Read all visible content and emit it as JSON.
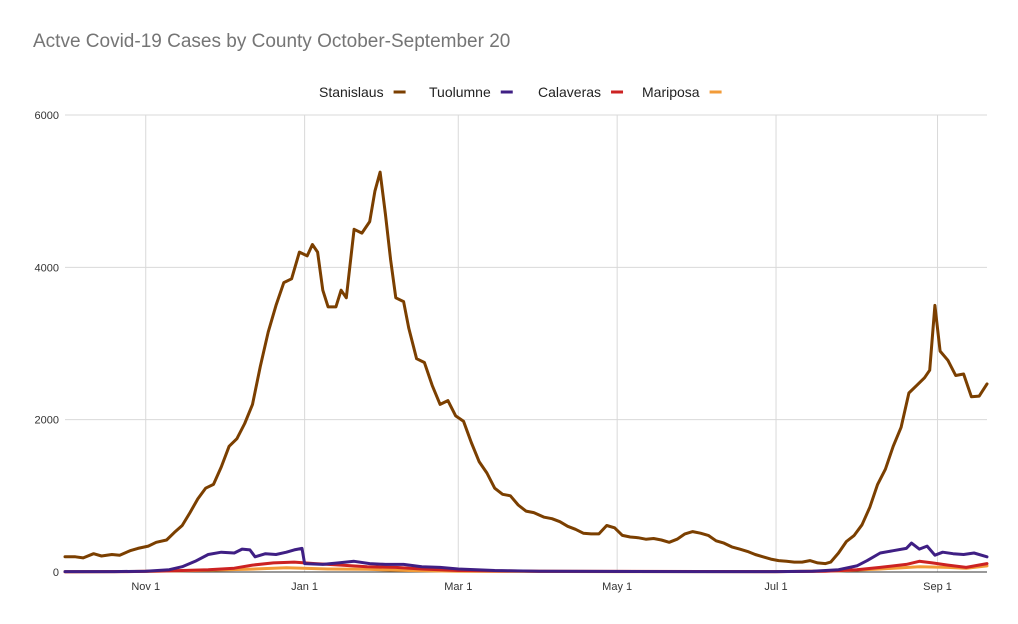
{
  "chart_data": {
    "type": "line",
    "title": "Actve Covid-19 Cases by County October-September 20",
    "xlabel": "",
    "ylabel": "",
    "ylim": [
      0,
      6000
    ],
    "y_ticks": [
      0,
      2000,
      4000,
      6000
    ],
    "x_range": [
      "2020-10-01",
      "2021-09-20"
    ],
    "x_ticks": [
      {
        "date": "2020-11-01",
        "label": "Nov 1"
      },
      {
        "date": "2021-01-01",
        "label": "Jan 1"
      },
      {
        "date": "2021-03-01",
        "label": "Mar 1"
      },
      {
        "date": "2021-05-01",
        "label": "May 1"
      },
      {
        "date": "2021-07-01",
        "label": "Jul 1"
      },
      {
        "date": "2021-09-01",
        "label": "Sep 1"
      }
    ],
    "grid": true,
    "legend_position": "top",
    "series": [
      {
        "name": "Stanislaus",
        "color": "#7b3f00",
        "points": [
          [
            "2020-10-01",
            200
          ],
          [
            "2020-10-05",
            200
          ],
          [
            "2020-10-08",
            185
          ],
          [
            "2020-10-12",
            240
          ],
          [
            "2020-10-15",
            210
          ],
          [
            "2020-10-19",
            230
          ],
          [
            "2020-10-22",
            220
          ],
          [
            "2020-10-26",
            280
          ],
          [
            "2020-10-29",
            310
          ],
          [
            "2020-11-02",
            340
          ],
          [
            "2020-11-05",
            390
          ],
          [
            "2020-11-09",
            420
          ],
          [
            "2020-11-12",
            520
          ],
          [
            "2020-11-15",
            610
          ],
          [
            "2020-11-18",
            780
          ],
          [
            "2020-11-21",
            960
          ],
          [
            "2020-11-24",
            1100
          ],
          [
            "2020-11-27",
            1150
          ],
          [
            "2020-11-30",
            1380
          ],
          [
            "2020-12-03",
            1650
          ],
          [
            "2020-12-06",
            1750
          ],
          [
            "2020-12-09",
            1950
          ],
          [
            "2020-12-12",
            2200
          ],
          [
            "2020-12-15",
            2700
          ],
          [
            "2020-12-18",
            3150
          ],
          [
            "2020-12-21",
            3500
          ],
          [
            "2020-12-24",
            3800
          ],
          [
            "2020-12-27",
            3850
          ],
          [
            "2020-12-30",
            4200
          ],
          [
            "2021-01-02",
            4150
          ],
          [
            "2021-01-04",
            4300
          ],
          [
            "2021-01-06",
            4200
          ],
          [
            "2021-01-08",
            3700
          ],
          [
            "2021-01-10",
            3480
          ],
          [
            "2021-01-13",
            3480
          ],
          [
            "2021-01-15",
            3700
          ],
          [
            "2021-01-17",
            3600
          ],
          [
            "2021-01-20",
            4500
          ],
          [
            "2021-01-23",
            4450
          ],
          [
            "2021-01-26",
            4600
          ],
          [
            "2021-01-28",
            5000
          ],
          [
            "2021-01-30",
            5250
          ],
          [
            "2021-02-01",
            4700
          ],
          [
            "2021-02-03",
            4100
          ],
          [
            "2021-02-05",
            3600
          ],
          [
            "2021-02-08",
            3550
          ],
          [
            "2021-02-10",
            3200
          ],
          [
            "2021-02-13",
            2800
          ],
          [
            "2021-02-16",
            2750
          ],
          [
            "2021-02-19",
            2450
          ],
          [
            "2021-02-22",
            2200
          ],
          [
            "2021-02-25",
            2250
          ],
          [
            "2021-02-28",
            2050
          ],
          [
            "2021-03-03",
            1980
          ],
          [
            "2021-03-06",
            1700
          ],
          [
            "2021-03-09",
            1450
          ],
          [
            "2021-03-12",
            1300
          ],
          [
            "2021-03-15",
            1100
          ],
          [
            "2021-03-18",
            1020
          ],
          [
            "2021-03-21",
            1000
          ],
          [
            "2021-03-24",
            880
          ],
          [
            "2021-03-27",
            800
          ],
          [
            "2021-03-30",
            780
          ],
          [
            "2021-04-03",
            720
          ],
          [
            "2021-04-06",
            700
          ],
          [
            "2021-04-09",
            660
          ],
          [
            "2021-04-12",
            600
          ],
          [
            "2021-04-15",
            560
          ],
          [
            "2021-04-18",
            510
          ],
          [
            "2021-04-21",
            500
          ],
          [
            "2021-04-24",
            500
          ],
          [
            "2021-04-27",
            610
          ],
          [
            "2021-04-30",
            580
          ],
          [
            "2021-05-03",
            480
          ],
          [
            "2021-05-06",
            460
          ],
          [
            "2021-05-09",
            450
          ],
          [
            "2021-05-12",
            430
          ],
          [
            "2021-05-15",
            440
          ],
          [
            "2021-05-18",
            420
          ],
          [
            "2021-05-21",
            390
          ],
          [
            "2021-05-24",
            430
          ],
          [
            "2021-05-27",
            500
          ],
          [
            "2021-05-30",
            530
          ],
          [
            "2021-06-02",
            510
          ],
          [
            "2021-06-05",
            480
          ],
          [
            "2021-06-08",
            410
          ],
          [
            "2021-06-11",
            380
          ],
          [
            "2021-06-14",
            330
          ],
          [
            "2021-06-17",
            300
          ],
          [
            "2021-06-20",
            270
          ],
          [
            "2021-06-23",
            230
          ],
          [
            "2021-06-26",
            200
          ],
          [
            "2021-06-29",
            170
          ],
          [
            "2021-07-02",
            150
          ],
          [
            "2021-07-05",
            140
          ],
          [
            "2021-07-08",
            130
          ],
          [
            "2021-07-11",
            130
          ],
          [
            "2021-07-14",
            150
          ],
          [
            "2021-07-17",
            120
          ],
          [
            "2021-07-20",
            110
          ],
          [
            "2021-07-22",
            130
          ],
          [
            "2021-07-25",
            250
          ],
          [
            "2021-07-28",
            400
          ],
          [
            "2021-07-31",
            480
          ],
          [
            "2021-08-03",
            620
          ],
          [
            "2021-08-06",
            850
          ],
          [
            "2021-08-09",
            1150
          ],
          [
            "2021-08-12",
            1350
          ],
          [
            "2021-08-15",
            1650
          ],
          [
            "2021-08-18",
            1900
          ],
          [
            "2021-08-21",
            2350
          ],
          [
            "2021-08-24",
            2450
          ],
          [
            "2021-08-27",
            2550
          ],
          [
            "2021-08-29",
            2650
          ],
          [
            "2021-08-31",
            3500
          ],
          [
            "2021-09-02",
            2900
          ],
          [
            "2021-09-05",
            2780
          ],
          [
            "2021-09-08",
            2580
          ],
          [
            "2021-09-11",
            2600
          ],
          [
            "2021-09-14",
            2300
          ],
          [
            "2021-09-17",
            2310
          ],
          [
            "2021-09-20",
            2470
          ]
        ]
      },
      {
        "name": "Tuolumne",
        "color": "#3f1f84",
        "points": [
          [
            "2020-10-01",
            5
          ],
          [
            "2020-10-20",
            5
          ],
          [
            "2020-11-01",
            10
          ],
          [
            "2020-11-10",
            30
          ],
          [
            "2020-11-15",
            70
          ],
          [
            "2020-11-20",
            140
          ],
          [
            "2020-11-25",
            230
          ],
          [
            "2020-11-30",
            260
          ],
          [
            "2020-12-05",
            250
          ],
          [
            "2020-12-08",
            300
          ],
          [
            "2020-12-11",
            290
          ],
          [
            "2020-12-13",
            200
          ],
          [
            "2020-12-17",
            240
          ],
          [
            "2020-12-21",
            230
          ],
          [
            "2020-12-25",
            260
          ],
          [
            "2020-12-28",
            290
          ],
          [
            "2020-12-31",
            310
          ],
          [
            "2021-01-01",
            110
          ],
          [
            "2021-01-08",
            100
          ],
          [
            "2021-01-14",
            120
          ],
          [
            "2021-01-20",
            140
          ],
          [
            "2021-01-26",
            110
          ],
          [
            "2021-02-01",
            100
          ],
          [
            "2021-02-08",
            100
          ],
          [
            "2021-02-15",
            70
          ],
          [
            "2021-02-22",
            60
          ],
          [
            "2021-03-01",
            40
          ],
          [
            "2021-03-08",
            30
          ],
          [
            "2021-03-15",
            20
          ],
          [
            "2021-04-01",
            10
          ],
          [
            "2021-06-01",
            5
          ],
          [
            "2021-07-01",
            5
          ],
          [
            "2021-07-15",
            10
          ],
          [
            "2021-07-25",
            30
          ],
          [
            "2021-08-01",
            80
          ],
          [
            "2021-08-05",
            150
          ],
          [
            "2021-08-10",
            250
          ],
          [
            "2021-08-15",
            280
          ],
          [
            "2021-08-20",
            310
          ],
          [
            "2021-08-22",
            380
          ],
          [
            "2021-08-25",
            300
          ],
          [
            "2021-08-28",
            340
          ],
          [
            "2021-08-31",
            220
          ],
          [
            "2021-09-03",
            260
          ],
          [
            "2021-09-07",
            240
          ],
          [
            "2021-09-11",
            230
          ],
          [
            "2021-09-15",
            250
          ],
          [
            "2021-09-20",
            200
          ]
        ]
      },
      {
        "name": "Calaveras",
        "color": "#cc2222",
        "points": [
          [
            "2020-10-01",
            2
          ],
          [
            "2020-10-25",
            5
          ],
          [
            "2020-11-10",
            15
          ],
          [
            "2020-11-25",
            30
          ],
          [
            "2020-12-05",
            50
          ],
          [
            "2020-12-12",
            90
          ],
          [
            "2020-12-20",
            120
          ],
          [
            "2020-12-28",
            130
          ],
          [
            "2021-01-05",
            110
          ],
          [
            "2021-01-15",
            90
          ],
          [
            "2021-01-25",
            70
          ],
          [
            "2021-02-05",
            60
          ],
          [
            "2021-02-15",
            40
          ],
          [
            "2021-03-01",
            20
          ],
          [
            "2021-04-01",
            10
          ],
          [
            "2021-07-01",
            5
          ],
          [
            "2021-07-20",
            10
          ],
          [
            "2021-08-01",
            30
          ],
          [
            "2021-08-10",
            60
          ],
          [
            "2021-08-20",
            100
          ],
          [
            "2021-08-25",
            140
          ],
          [
            "2021-08-30",
            120
          ],
          [
            "2021-09-05",
            90
          ],
          [
            "2021-09-12",
            60
          ],
          [
            "2021-09-20",
            110
          ]
        ]
      },
      {
        "name": "Mariposa",
        "color": "#f29b38",
        "points": [
          [
            "2020-10-01",
            2
          ],
          [
            "2020-11-01",
            8
          ],
          [
            "2020-11-20",
            20
          ],
          [
            "2020-12-10",
            35
          ],
          [
            "2020-12-25",
            55
          ],
          [
            "2021-01-10",
            40
          ],
          [
            "2021-01-25",
            35
          ],
          [
            "2021-02-10",
            20
          ],
          [
            "2021-03-01",
            10
          ],
          [
            "2021-05-01",
            5
          ],
          [
            "2021-07-01",
            5
          ],
          [
            "2021-07-25",
            15
          ],
          [
            "2021-08-10",
            40
          ],
          [
            "2021-08-25",
            70
          ],
          [
            "2021-09-05",
            60
          ],
          [
            "2021-09-12",
            50
          ],
          [
            "2021-09-20",
            80
          ]
        ]
      }
    ]
  }
}
